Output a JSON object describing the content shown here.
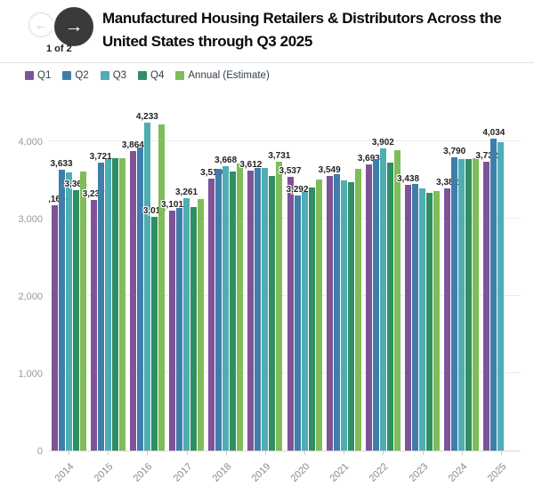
{
  "header": {
    "pagination": "1 of 2",
    "title": "Manufactured Housing Retailers & Distributors Across the United States through Q3 2025",
    "prev_icon": "←",
    "next_icon": "→"
  },
  "legend": [
    {
      "label": "Q1",
      "color": "#7e5397"
    },
    {
      "label": "Q2",
      "color": "#3f7dab"
    },
    {
      "label": "Q3",
      "color": "#4fadb4"
    },
    {
      "label": "Q4",
      "color": "#2f8e63"
    },
    {
      "label": "Annual (Estimate)",
      "color": "#7fbc5a"
    }
  ],
  "chart_data": {
    "type": "bar",
    "title": "Manufactured Housing Retailers & Distributors Across the United States through Q3 2025",
    "series": [
      "Q1",
      "Q2",
      "Q3",
      "Q4",
      "Annual (Estimate)"
    ],
    "xlabel": "",
    "ylabel": "",
    "ylim": [
      0,
      4500
    ],
    "y_ticks": [
      "0",
      "1,000",
      "2,000",
      "3,000",
      "4,000"
    ],
    "grid": true,
    "legend_position": "top-left",
    "years": [
      {
        "year": "2014",
        "bars": [
          {
            "series": "Q1",
            "value": 3165,
            "label": "3,165"
          },
          {
            "series": "Q2",
            "value": 3633,
            "label": "3,633"
          },
          {
            "series": "Q3",
            "value": 3590
          },
          {
            "series": "Q4",
            "value": 3364,
            "label": "3,364"
          },
          {
            "series": "Annual (Estimate)",
            "value": 3610
          }
        ]
      },
      {
        "year": "2015",
        "bars": [
          {
            "series": "Q1",
            "value": 3237,
            "label": "3,237"
          },
          {
            "series": "Q2",
            "value": 3721,
            "label": "3,721"
          },
          {
            "series": "Q3",
            "value": 3760
          },
          {
            "series": "Q4",
            "value": 3775
          },
          {
            "series": "Annual (Estimate)",
            "value": 3780
          }
        ]
      },
      {
        "year": "2016",
        "bars": [
          {
            "series": "Q1",
            "value": 3864,
            "label": "3,864"
          },
          {
            "series": "Q2",
            "value": 3915
          },
          {
            "series": "Q3",
            "value": 4233,
            "label": "4,233"
          },
          {
            "series": "Q4",
            "value": 3019,
            "label": "3,019"
          },
          {
            "series": "Annual (Estimate)",
            "value": 4210
          }
        ]
      },
      {
        "year": "2017",
        "bars": [
          {
            "series": "Q1",
            "value": 3101,
            "label": "3,101"
          },
          {
            "series": "Q2",
            "value": 3135
          },
          {
            "series": "Q3",
            "value": 3261,
            "label": "3,261"
          },
          {
            "series": "Q4",
            "value": 3145
          },
          {
            "series": "Annual (Estimate)",
            "value": 3245
          }
        ]
      },
      {
        "year": "2018",
        "bars": [
          {
            "series": "Q1",
            "value": 3510,
            "label": "3,510"
          },
          {
            "series": "Q2",
            "value": 3640
          },
          {
            "series": "Q3",
            "value": 3668,
            "label": "3,668"
          },
          {
            "series": "Q4",
            "value": 3610
          },
          {
            "series": "Annual (Estimate)",
            "value": 3705
          }
        ]
      },
      {
        "year": "2019",
        "bars": [
          {
            "series": "Q1",
            "value": 3612,
            "label": "3,612"
          },
          {
            "series": "Q2",
            "value": 3655
          },
          {
            "series": "Q3",
            "value": 3645
          },
          {
            "series": "Q4",
            "value": 3545
          },
          {
            "series": "Annual (Estimate)",
            "value": 3731,
            "label": "3,731"
          }
        ]
      },
      {
        "year": "2020",
        "bars": [
          {
            "series": "Q1",
            "value": 3537,
            "label": "3,537"
          },
          {
            "series": "Q2",
            "value": 3292,
            "label": "3,292"
          },
          {
            "series": "Q3",
            "value": 3345
          },
          {
            "series": "Q4",
            "value": 3395
          },
          {
            "series": "Annual (Estimate)",
            "value": 3505
          }
        ]
      },
      {
        "year": "2021",
        "bars": [
          {
            "series": "Q1",
            "value": 3549,
            "label": "3,549"
          },
          {
            "series": "Q2",
            "value": 3575
          },
          {
            "series": "Q3",
            "value": 3490
          },
          {
            "series": "Q4",
            "value": 3465
          },
          {
            "series": "Annual (Estimate)",
            "value": 3640
          }
        ]
      },
      {
        "year": "2022",
        "bars": [
          {
            "series": "Q1",
            "value": 3693,
            "label": "3,693"
          },
          {
            "series": "Q2",
            "value": 3770
          },
          {
            "series": "Q3",
            "value": 3902,
            "label": "3,902"
          },
          {
            "series": "Q4",
            "value": 3720
          },
          {
            "series": "Annual (Estimate)",
            "value": 3885
          }
        ]
      },
      {
        "year": "2023",
        "bars": [
          {
            "series": "Q1",
            "value": 3438,
            "label": "3,438"
          },
          {
            "series": "Q2",
            "value": 3445
          },
          {
            "series": "Q3",
            "value": 3390
          },
          {
            "series": "Q4",
            "value": 3335
          },
          {
            "series": "Annual (Estimate)",
            "value": 3355
          }
        ]
      },
      {
        "year": "2024",
        "bars": [
          {
            "series": "Q1",
            "value": 3382,
            "label": "3,382"
          },
          {
            "series": "Q2",
            "value": 3790,
            "label": "3,790"
          },
          {
            "series": "Q3",
            "value": 3765
          },
          {
            "series": "Q4",
            "value": 3770
          },
          {
            "series": "Annual (Estimate)",
            "value": 3775
          }
        ]
      },
      {
        "year": "2025",
        "bars": [
          {
            "series": "Q1",
            "value": 3732,
            "label": "3,732"
          },
          {
            "series": "Q2",
            "value": 4034,
            "label": "4,034"
          },
          {
            "series": "Q3",
            "value": 3985
          }
        ]
      }
    ]
  }
}
